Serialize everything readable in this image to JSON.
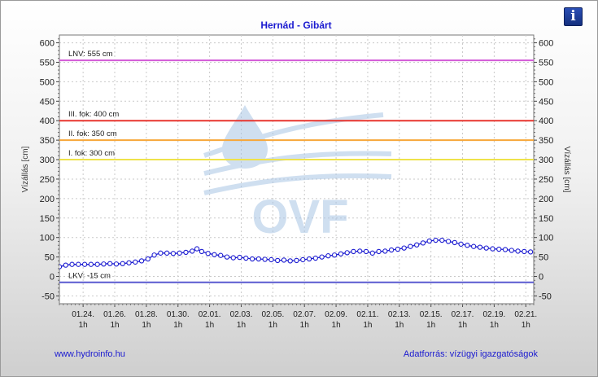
{
  "footer": {
    "left": "www.hydroinfo.hu",
    "right": "Adatforrás: vízügyi igazgatóságok"
  },
  "info_button": {
    "icon": "info-icon",
    "glyph": "i"
  },
  "watermark": {
    "text": "OVF",
    "color": "#9fbede"
  },
  "chart_data": {
    "type": "line",
    "title": "Hernád - Gibárt",
    "ylabel": "Vízállás [cm]",
    "ylabel_right": "Vízállás [cm]",
    "ylim": [
      -70,
      620
    ],
    "yticks": [
      -50,
      0,
      50,
      100,
      150,
      200,
      250,
      300,
      350,
      400,
      450,
      500,
      550,
      600
    ],
    "xlim": [
      0,
      30
    ],
    "xticks": [
      {
        "x": 1.5,
        "date": "01.24.",
        "hour": "1h"
      },
      {
        "x": 3.5,
        "date": "01.26.",
        "hour": "1h"
      },
      {
        "x": 5.5,
        "date": "01.28.",
        "hour": "1h"
      },
      {
        "x": 7.5,
        "date": "01.30.",
        "hour": "1h"
      },
      {
        "x": 9.5,
        "date": "02.01.",
        "hour": "1h"
      },
      {
        "x": 11.5,
        "date": "02.03.",
        "hour": "1h"
      },
      {
        "x": 13.5,
        "date": "02.05.",
        "hour": "1h"
      },
      {
        "x": 15.5,
        "date": "02.07.",
        "hour": "1h"
      },
      {
        "x": 17.5,
        "date": "02.09.",
        "hour": "1h"
      },
      {
        "x": 19.5,
        "date": "02.11.",
        "hour": "1h"
      },
      {
        "x": 21.5,
        "date": "02.13.",
        "hour": "1h"
      },
      {
        "x": 23.5,
        "date": "02.15.",
        "hour": "1h"
      },
      {
        "x": 25.5,
        "date": "02.17.",
        "hour": "1h"
      },
      {
        "x": 27.5,
        "date": "02.19.",
        "hour": "1h"
      },
      {
        "x": 29.5,
        "date": "02.21.",
        "hour": "1h"
      }
    ],
    "reference_lines": [
      {
        "label": "LNV: 555 cm",
        "value": 555,
        "color": "#d35ad7"
      },
      {
        "label": "III. fok: 400 cm",
        "value": 400,
        "color": "#e8352f"
      },
      {
        "label": "II. fok: 350 cm",
        "value": 350,
        "color": "#f7a73a"
      },
      {
        "label": "I. fok: 300 cm",
        "value": 300,
        "color": "#efe24a"
      },
      {
        "label": "LKV: -15 cm",
        "value": -15,
        "color": "#5a5ad0"
      }
    ],
    "grid": true,
    "series": [
      {
        "color": "#1a1ad0",
        "points": [
          [
            0.0,
            25
          ],
          [
            0.4,
            29
          ],
          [
            0.8,
            31
          ],
          [
            1.2,
            31
          ],
          [
            1.6,
            31
          ],
          [
            2.0,
            31
          ],
          [
            2.4,
            31
          ],
          [
            2.8,
            32
          ],
          [
            3.2,
            33
          ],
          [
            3.6,
            32
          ],
          [
            4.0,
            33
          ],
          [
            4.4,
            35
          ],
          [
            4.8,
            37
          ],
          [
            5.2,
            40
          ],
          [
            5.6,
            45
          ],
          [
            6.0,
            55
          ],
          [
            6.4,
            60
          ],
          [
            6.8,
            60
          ],
          [
            7.2,
            59
          ],
          [
            7.6,
            60
          ],
          [
            8.0,
            62
          ],
          [
            8.4,
            65
          ],
          [
            8.7,
            71
          ],
          [
            9.0,
            64
          ],
          [
            9.4,
            59
          ],
          [
            9.8,
            56
          ],
          [
            10.2,
            54
          ],
          [
            10.6,
            50
          ],
          [
            11.0,
            48
          ],
          [
            11.4,
            49
          ],
          [
            11.8,
            47
          ],
          [
            12.2,
            45
          ],
          [
            12.6,
            45
          ],
          [
            13.0,
            44
          ],
          [
            13.4,
            43
          ],
          [
            13.8,
            41
          ],
          [
            14.2,
            42
          ],
          [
            14.6,
            40
          ],
          [
            15.0,
            41
          ],
          [
            15.4,
            43
          ],
          [
            15.8,
            45
          ],
          [
            16.2,
            47
          ],
          [
            16.6,
            50
          ],
          [
            17.0,
            53
          ],
          [
            17.4,
            55
          ],
          [
            17.8,
            58
          ],
          [
            18.2,
            61
          ],
          [
            18.6,
            64
          ],
          [
            19.0,
            65
          ],
          [
            19.4,
            64
          ],
          [
            19.8,
            60
          ],
          [
            20.2,
            64
          ],
          [
            20.6,
            65
          ],
          [
            21.0,
            68
          ],
          [
            21.4,
            70
          ],
          [
            21.8,
            73
          ],
          [
            22.2,
            77
          ],
          [
            22.6,
            81
          ],
          [
            23.0,
            86
          ],
          [
            23.4,
            91
          ],
          [
            23.8,
            93
          ],
          [
            24.2,
            93
          ],
          [
            24.6,
            90
          ],
          [
            25.0,
            87
          ],
          [
            25.4,
            83
          ],
          [
            25.8,
            80
          ],
          [
            26.2,
            77
          ],
          [
            26.6,
            75
          ],
          [
            27.0,
            73
          ],
          [
            27.4,
            71
          ],
          [
            27.8,
            70
          ],
          [
            28.2,
            69
          ],
          [
            28.6,
            67
          ],
          [
            29.0,
            65
          ],
          [
            29.4,
            64
          ],
          [
            29.8,
            63
          ]
        ]
      }
    ]
  }
}
